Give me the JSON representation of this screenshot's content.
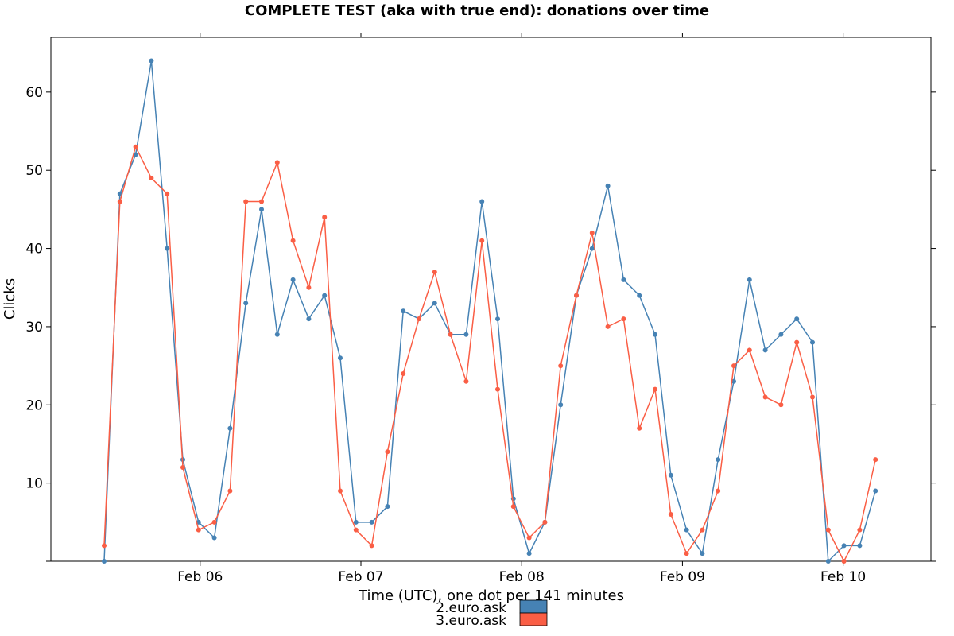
{
  "chart_data": {
    "type": "line",
    "title": "COMPLETE TEST (aka with true end): donations over time",
    "xlabel": "Time (UTC), one dot per 141 minutes",
    "ylabel": "Clicks",
    "ylim": [
      0,
      67
    ],
    "yticks": [
      10,
      20,
      30,
      40,
      50,
      60
    ],
    "xtick_labels": [
      "Feb 06",
      "Feb 07",
      "Feb 08",
      "Feb 09",
      "Feb 10"
    ],
    "grid": false,
    "legend_position": "bottom-center",
    "series": [
      {
        "name": "2.euro.ask",
        "color": "#4682b4",
        "values": [
          0,
          47,
          52,
          64,
          40,
          13,
          5,
          3,
          17,
          33,
          45,
          29,
          36,
          31,
          34,
          26,
          5,
          5,
          7,
          32,
          31,
          33,
          29,
          29,
          46,
          31,
          8,
          1,
          5,
          20,
          34,
          40,
          48,
          36,
          34,
          29,
          11,
          4,
          1,
          13,
          23,
          36,
          27,
          29,
          31,
          28,
          0,
          2,
          2,
          9
        ]
      },
      {
        "name": "3.euro.ask",
        "color": "#fa5e45",
        "values": [
          2,
          46,
          53,
          49,
          47,
          12,
          4,
          5,
          9,
          46,
          46,
          51,
          41,
          35,
          44,
          9,
          4,
          2,
          14,
          24,
          31,
          37,
          29,
          23,
          41,
          22,
          7,
          3,
          5,
          25,
          34,
          42,
          30,
          31,
          17,
          22,
          6,
          1,
          4,
          9,
          25,
          27,
          21,
          20,
          28,
          21,
          4,
          0,
          4,
          13
        ]
      }
    ]
  }
}
